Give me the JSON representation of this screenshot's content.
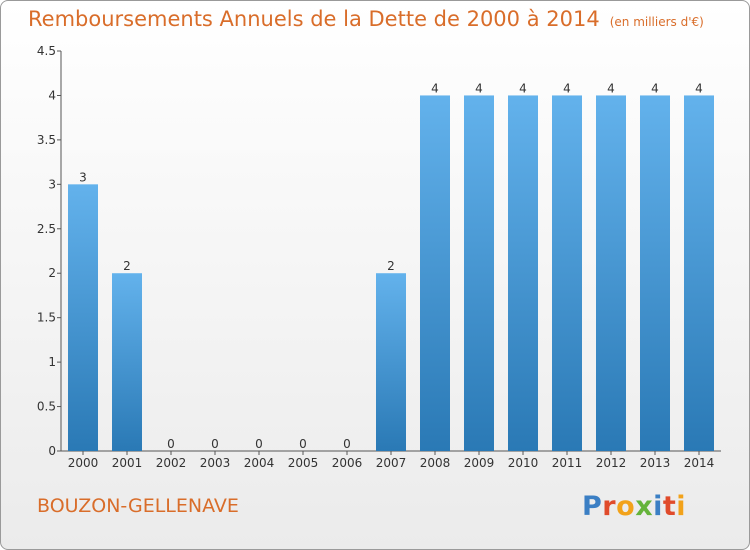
{
  "title": "Remboursements Annuels de la Dette de 2000 à 2014",
  "title_unit": "(en milliers d'€)",
  "town": "BOUZON-GELLENAVE",
  "logo": {
    "text": "Proxiti",
    "letter_colors": [
      "#3b7fc4",
      "#e04b2b",
      "#f2a21a",
      "#65b33a",
      "#3b7fc4",
      "#e04b2b",
      "#f2a21a"
    ]
  },
  "colors": {
    "title": "#d96d2a",
    "bar_top": "#63b2ec",
    "bar_bottom": "#2a79b5",
    "axis": "#555555"
  },
  "chart_data": {
    "type": "bar",
    "categories": [
      "2000",
      "2001",
      "2002",
      "2003",
      "2004",
      "2005",
      "2006",
      "2007",
      "2008",
      "2009",
      "2010",
      "2011",
      "2012",
      "2013",
      "2014"
    ],
    "values": [
      3,
      2,
      0,
      0,
      0,
      0,
      0,
      2,
      4,
      4,
      4,
      4,
      4,
      4,
      4
    ],
    "data_labels": [
      "3",
      "2",
      "0",
      "0",
      "0",
      "0",
      "0",
      "2",
      "4",
      "4",
      "4",
      "4",
      "4",
      "4",
      "4"
    ],
    "yticks": [
      0,
      0.5,
      1,
      1.5,
      2,
      2.5,
      3,
      3.5,
      4,
      4.5
    ],
    "ytick_labels": [
      "0",
      "0.5",
      "1",
      "1.5",
      "2",
      "2.5",
      "3",
      "3.5",
      "4",
      "4.5"
    ],
    "ylim": [
      0,
      4.5
    ],
    "xlabel": "",
    "ylabel": "",
    "grid": false
  }
}
